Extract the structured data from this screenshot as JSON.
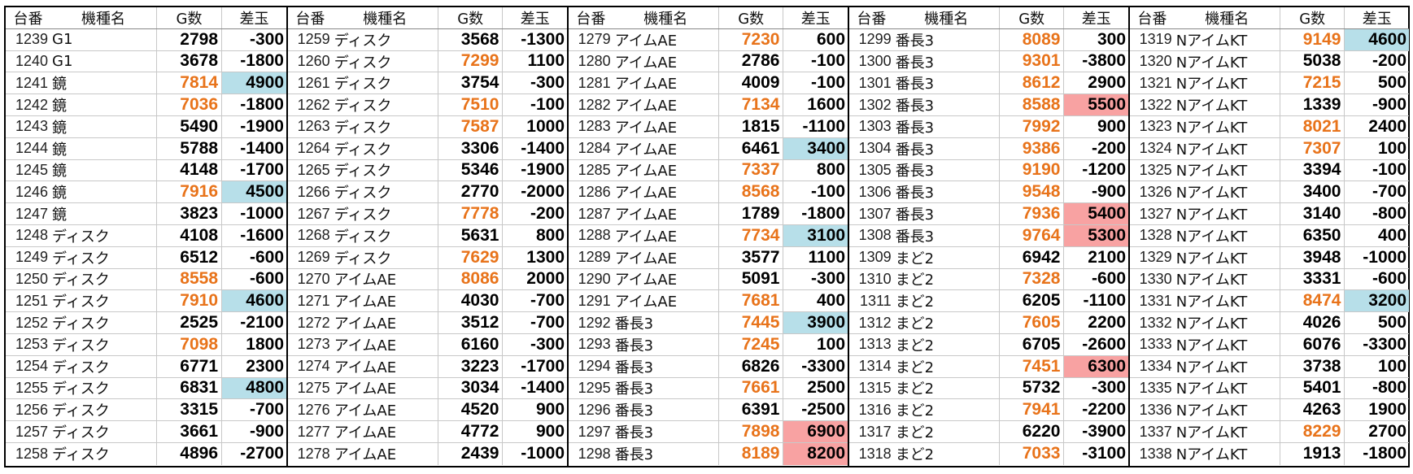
{
  "headers": {
    "no": "台番",
    "name": "機種名",
    "games": "G数",
    "diff": "差玉"
  },
  "colors": {
    "highlight_games": "#e8731a",
    "diff_positive_big": "#b7dfe9",
    "diff_top": "#f8a2a2"
  },
  "blocks": [
    [
      {
        "no": "1239",
        "name": "G1",
        "g": "2798",
        "s": "-300",
        "go": false,
        "sb": ""
      },
      {
        "no": "1240",
        "name": "G1",
        "g": "3678",
        "s": "-1800",
        "go": false,
        "sb": ""
      },
      {
        "no": "1241",
        "name": "鏡",
        "g": "7814",
        "s": "4900",
        "go": true,
        "sb": "blue"
      },
      {
        "no": "1242",
        "name": "鏡",
        "g": "7036",
        "s": "-1800",
        "go": true,
        "sb": ""
      },
      {
        "no": "1243",
        "name": "鏡",
        "g": "5490",
        "s": "-1900",
        "go": false,
        "sb": ""
      },
      {
        "no": "1244",
        "name": "鏡",
        "g": "5788",
        "s": "-1400",
        "go": false,
        "sb": ""
      },
      {
        "no": "1245",
        "name": "鏡",
        "g": "4148",
        "s": "-1700",
        "go": false,
        "sb": ""
      },
      {
        "no": "1246",
        "name": "鏡",
        "g": "7916",
        "s": "4500",
        "go": true,
        "sb": "blue"
      },
      {
        "no": "1247",
        "name": "鏡",
        "g": "3823",
        "s": "-1000",
        "go": false,
        "sb": ""
      },
      {
        "no": "1248",
        "name": "ディスク",
        "g": "4108",
        "s": "-1600",
        "go": false,
        "sb": ""
      },
      {
        "no": "1249",
        "name": "ディスク",
        "g": "6512",
        "s": "-600",
        "go": false,
        "sb": ""
      },
      {
        "no": "1250",
        "name": "ディスク",
        "g": "8558",
        "s": "-600",
        "go": true,
        "sb": ""
      },
      {
        "no": "1251",
        "name": "ディスク",
        "g": "7910",
        "s": "4600",
        "go": true,
        "sb": "blue"
      },
      {
        "no": "1252",
        "name": "ディスク",
        "g": "2525",
        "s": "-2100",
        "go": false,
        "sb": ""
      },
      {
        "no": "1253",
        "name": "ディスク",
        "g": "7098",
        "s": "1800",
        "go": true,
        "sb": ""
      },
      {
        "no": "1254",
        "name": "ディスク",
        "g": "6771",
        "s": "2300",
        "go": false,
        "sb": ""
      },
      {
        "no": "1255",
        "name": "ディスク",
        "g": "6831",
        "s": "4800",
        "go": false,
        "sb": "blue"
      },
      {
        "no": "1256",
        "name": "ディスク",
        "g": "3315",
        "s": "-700",
        "go": false,
        "sb": ""
      },
      {
        "no": "1257",
        "name": "ディスク",
        "g": "3661",
        "s": "-900",
        "go": false,
        "sb": ""
      },
      {
        "no": "1258",
        "name": "ディスク",
        "g": "4896",
        "s": "-2700",
        "go": false,
        "sb": ""
      }
    ],
    [
      {
        "no": "1259",
        "name": "ディスク",
        "g": "3568",
        "s": "-1300",
        "go": false,
        "sb": ""
      },
      {
        "no": "1260",
        "name": "ディスク",
        "g": "7299",
        "s": "1100",
        "go": true,
        "sb": ""
      },
      {
        "no": "1261",
        "name": "ディスク",
        "g": "3754",
        "s": "-300",
        "go": false,
        "sb": ""
      },
      {
        "no": "1262",
        "name": "ディスク",
        "g": "7510",
        "s": "-100",
        "go": true,
        "sb": ""
      },
      {
        "no": "1263",
        "name": "ディスク",
        "g": "7587",
        "s": "1000",
        "go": true,
        "sb": ""
      },
      {
        "no": "1264",
        "name": "ディスク",
        "g": "3306",
        "s": "-1400",
        "go": false,
        "sb": ""
      },
      {
        "no": "1265",
        "name": "ディスク",
        "g": "5346",
        "s": "-1900",
        "go": false,
        "sb": ""
      },
      {
        "no": "1266",
        "name": "ディスク",
        "g": "2770",
        "s": "-2000",
        "go": false,
        "sb": ""
      },
      {
        "no": "1267",
        "name": "ディスク",
        "g": "7778",
        "s": "-200",
        "go": true,
        "sb": ""
      },
      {
        "no": "1268",
        "name": "ディスク",
        "g": "5631",
        "s": "800",
        "go": false,
        "sb": ""
      },
      {
        "no": "1269",
        "name": "ディスク",
        "g": "7629",
        "s": "1300",
        "go": true,
        "sb": ""
      },
      {
        "no": "1270",
        "name": "アイムAE",
        "g": "8086",
        "s": "2000",
        "go": true,
        "sb": ""
      },
      {
        "no": "1271",
        "name": "アイムAE",
        "g": "4030",
        "s": "-700",
        "go": false,
        "sb": ""
      },
      {
        "no": "1272",
        "name": "アイムAE",
        "g": "3512",
        "s": "-700",
        "go": false,
        "sb": ""
      },
      {
        "no": "1273",
        "name": "アイムAE",
        "g": "6160",
        "s": "-300",
        "go": false,
        "sb": ""
      },
      {
        "no": "1274",
        "name": "アイムAE",
        "g": "3223",
        "s": "-1700",
        "go": false,
        "sb": ""
      },
      {
        "no": "1275",
        "name": "アイムAE",
        "g": "3034",
        "s": "-1400",
        "go": false,
        "sb": ""
      },
      {
        "no": "1276",
        "name": "アイムAE",
        "g": "4520",
        "s": "900",
        "go": false,
        "sb": ""
      },
      {
        "no": "1277",
        "name": "アイムAE",
        "g": "4772",
        "s": "900",
        "go": false,
        "sb": ""
      },
      {
        "no": "1278",
        "name": "アイムAE",
        "g": "2439",
        "s": "-1000",
        "go": false,
        "sb": ""
      }
    ],
    [
      {
        "no": "1279",
        "name": "アイムAE",
        "g": "7230",
        "s": "600",
        "go": true,
        "sb": ""
      },
      {
        "no": "1280",
        "name": "アイムAE",
        "g": "2786",
        "s": "-100",
        "go": false,
        "sb": ""
      },
      {
        "no": "1281",
        "name": "アイムAE",
        "g": "4009",
        "s": "-100",
        "go": false,
        "sb": ""
      },
      {
        "no": "1282",
        "name": "アイムAE",
        "g": "7134",
        "s": "1600",
        "go": true,
        "sb": ""
      },
      {
        "no": "1283",
        "name": "アイムAE",
        "g": "1815",
        "s": "-1100",
        "go": false,
        "sb": ""
      },
      {
        "no": "1284",
        "name": "アイムAE",
        "g": "6461",
        "s": "3400",
        "go": false,
        "sb": "blue"
      },
      {
        "no": "1285",
        "name": "アイムAE",
        "g": "7337",
        "s": "800",
        "go": true,
        "sb": ""
      },
      {
        "no": "1286",
        "name": "アイムAE",
        "g": "8568",
        "s": "-100",
        "go": true,
        "sb": ""
      },
      {
        "no": "1287",
        "name": "アイムAE",
        "g": "1789",
        "s": "-1800",
        "go": false,
        "sb": ""
      },
      {
        "no": "1288",
        "name": "アイムAE",
        "g": "7734",
        "s": "3100",
        "go": true,
        "sb": "blue"
      },
      {
        "no": "1289",
        "name": "アイムAE",
        "g": "3577",
        "s": "1100",
        "go": false,
        "sb": ""
      },
      {
        "no": "1290",
        "name": "アイムAE",
        "g": "5091",
        "s": "-300",
        "go": false,
        "sb": ""
      },
      {
        "no": "1291",
        "name": "アイムAE",
        "g": "7681",
        "s": "400",
        "go": true,
        "sb": ""
      },
      {
        "no": "1292",
        "name": "番長3",
        "g": "7445",
        "s": "3900",
        "go": true,
        "sb": "blue"
      },
      {
        "no": "1293",
        "name": "番長3",
        "g": "7245",
        "s": "100",
        "go": true,
        "sb": ""
      },
      {
        "no": "1294",
        "name": "番長3",
        "g": "6826",
        "s": "-3300",
        "go": false,
        "sb": ""
      },
      {
        "no": "1295",
        "name": "番長3",
        "g": "7661",
        "s": "2500",
        "go": true,
        "sb": ""
      },
      {
        "no": "1296",
        "name": "番長3",
        "g": "6391",
        "s": "-2500",
        "go": false,
        "sb": ""
      },
      {
        "no": "1297",
        "name": "番長3",
        "g": "7898",
        "s": "6900",
        "go": true,
        "sb": "red"
      },
      {
        "no": "1298",
        "name": "番長3",
        "g": "8189",
        "s": "8200",
        "go": true,
        "sb": "red"
      }
    ],
    [
      {
        "no": "1299",
        "name": "番長3",
        "g": "8089",
        "s": "300",
        "go": true,
        "sb": ""
      },
      {
        "no": "1300",
        "name": "番長3",
        "g": "9301",
        "s": "-3800",
        "go": true,
        "sb": ""
      },
      {
        "no": "1301",
        "name": "番長3",
        "g": "8612",
        "s": "2900",
        "go": true,
        "sb": ""
      },
      {
        "no": "1302",
        "name": "番長3",
        "g": "8588",
        "s": "5500",
        "go": true,
        "sb": "red"
      },
      {
        "no": "1303",
        "name": "番長3",
        "g": "7992",
        "s": "900",
        "go": true,
        "sb": ""
      },
      {
        "no": "1304",
        "name": "番長3",
        "g": "9386",
        "s": "-200",
        "go": true,
        "sb": ""
      },
      {
        "no": "1305",
        "name": "番長3",
        "g": "9190",
        "s": "-1200",
        "go": true,
        "sb": ""
      },
      {
        "no": "1306",
        "name": "番長3",
        "g": "9548",
        "s": "-900",
        "go": true,
        "sb": ""
      },
      {
        "no": "1307",
        "name": "番長3",
        "g": "7936",
        "s": "5400",
        "go": true,
        "sb": "red"
      },
      {
        "no": "1308",
        "name": "番長3",
        "g": "9764",
        "s": "5300",
        "go": true,
        "sb": "red"
      },
      {
        "no": "1309",
        "name": "まど2",
        "g": "6942",
        "s": "2100",
        "go": false,
        "sb": ""
      },
      {
        "no": "1310",
        "name": "まど2",
        "g": "7328",
        "s": "-600",
        "go": true,
        "sb": ""
      },
      {
        "no": "1311",
        "name": "まど2",
        "g": "6205",
        "s": "-1100",
        "go": false,
        "sb": ""
      },
      {
        "no": "1312",
        "name": "まど2",
        "g": "7605",
        "s": "2200",
        "go": true,
        "sb": ""
      },
      {
        "no": "1313",
        "name": "まど2",
        "g": "6705",
        "s": "-2600",
        "go": false,
        "sb": ""
      },
      {
        "no": "1314",
        "name": "まど2",
        "g": "7451",
        "s": "6300",
        "go": true,
        "sb": "red"
      },
      {
        "no": "1315",
        "name": "まど2",
        "g": "5732",
        "s": "-300",
        "go": false,
        "sb": ""
      },
      {
        "no": "1316",
        "name": "まど2",
        "g": "7941",
        "s": "-2200",
        "go": true,
        "sb": ""
      },
      {
        "no": "1317",
        "name": "まど2",
        "g": "6220",
        "s": "-3900",
        "go": false,
        "sb": ""
      },
      {
        "no": "1318",
        "name": "まど2",
        "g": "7033",
        "s": "-3100",
        "go": true,
        "sb": ""
      }
    ],
    [
      {
        "no": "1319",
        "name": "NアイムKT",
        "g": "9149",
        "s": "4600",
        "go": true,
        "sb": "blue"
      },
      {
        "no": "1320",
        "name": "NアイムKT",
        "g": "5038",
        "s": "-200",
        "go": false,
        "sb": ""
      },
      {
        "no": "1321",
        "name": "NアイムKT",
        "g": "7215",
        "s": "500",
        "go": true,
        "sb": ""
      },
      {
        "no": "1322",
        "name": "NアイムKT",
        "g": "1339",
        "s": "-900",
        "go": false,
        "sb": ""
      },
      {
        "no": "1323",
        "name": "NアイムKT",
        "g": "8021",
        "s": "2400",
        "go": true,
        "sb": ""
      },
      {
        "no": "1324",
        "name": "NアイムKT",
        "g": "7307",
        "s": "100",
        "go": true,
        "sb": ""
      },
      {
        "no": "1325",
        "name": "NアイムKT",
        "g": "3394",
        "s": "-100",
        "go": false,
        "sb": ""
      },
      {
        "no": "1326",
        "name": "NアイムKT",
        "g": "3400",
        "s": "-700",
        "go": false,
        "sb": ""
      },
      {
        "no": "1327",
        "name": "NアイムKT",
        "g": "3140",
        "s": "-800",
        "go": false,
        "sb": ""
      },
      {
        "no": "1328",
        "name": "NアイムKT",
        "g": "6350",
        "s": "400",
        "go": false,
        "sb": ""
      },
      {
        "no": "1329",
        "name": "NアイムKT",
        "g": "3948",
        "s": "-1000",
        "go": false,
        "sb": ""
      },
      {
        "no": "1330",
        "name": "NアイムKT",
        "g": "3331",
        "s": "-600",
        "go": false,
        "sb": ""
      },
      {
        "no": "1331",
        "name": "NアイムKT",
        "g": "8474",
        "s": "3200",
        "go": true,
        "sb": "blue"
      },
      {
        "no": "1332",
        "name": "NアイムKT",
        "g": "4026",
        "s": "500",
        "go": false,
        "sb": ""
      },
      {
        "no": "1333",
        "name": "NアイムKT",
        "g": "6076",
        "s": "-3300",
        "go": false,
        "sb": ""
      },
      {
        "no": "1334",
        "name": "NアイムKT",
        "g": "3738",
        "s": "100",
        "go": false,
        "sb": ""
      },
      {
        "no": "1335",
        "name": "NアイムKT",
        "g": "5401",
        "s": "-800",
        "go": false,
        "sb": ""
      },
      {
        "no": "1336",
        "name": "NアイムKT",
        "g": "4263",
        "s": "1900",
        "go": false,
        "sb": ""
      },
      {
        "no": "1337",
        "name": "NアイムKT",
        "g": "8229",
        "s": "2700",
        "go": true,
        "sb": ""
      },
      {
        "no": "1338",
        "name": "NアイムKT",
        "g": "1913",
        "s": "-1800",
        "go": false,
        "sb": ""
      }
    ]
  ]
}
